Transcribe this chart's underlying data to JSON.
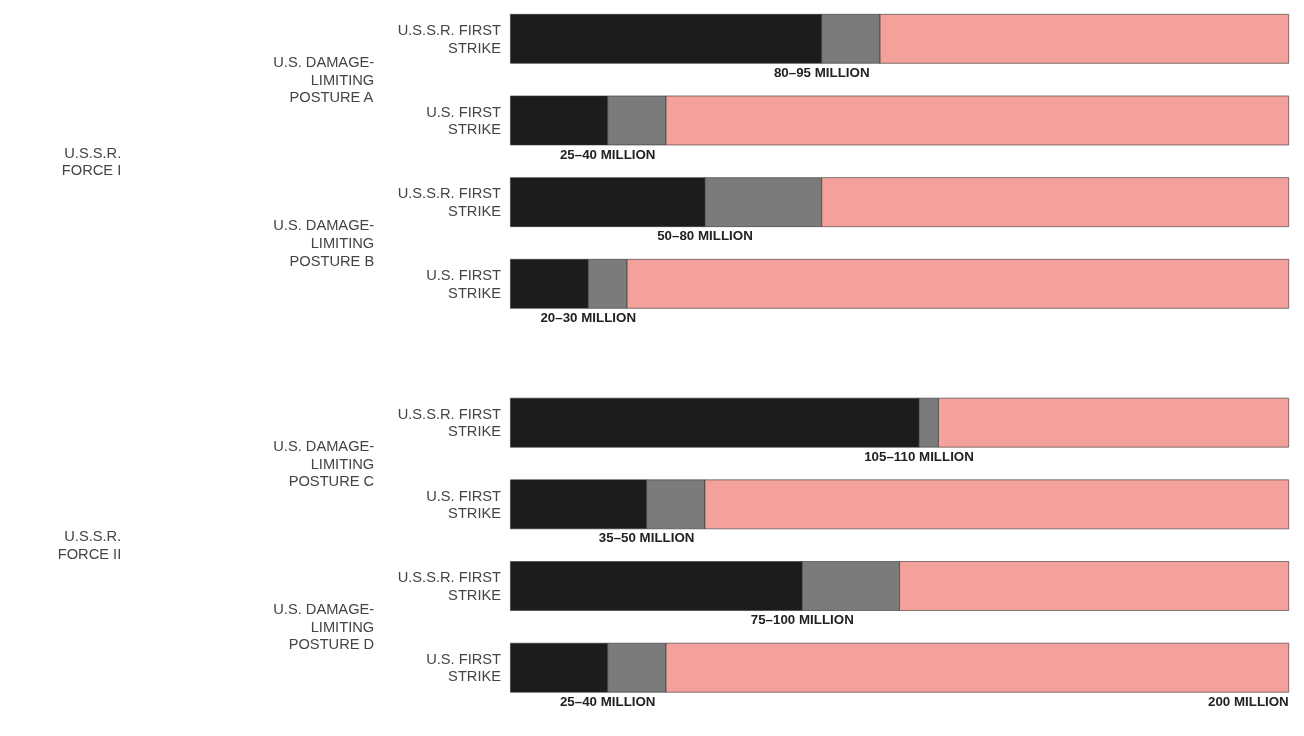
{
  "chart_data": {
    "type": "bar",
    "orientation": "horizontal",
    "stacked": true,
    "categories": [
      "U.S.S.R. FIRST\nSTRIKE",
      "U.S. FIRST\nSTRIKE",
      "U.S.S.R. FIRST\nSTRIKE",
      "U.S. FIRST\nSTRIKE",
      "U.S.S.R. FIRST\nSTRIKE",
      "U.S. FIRST\nSTRIKE",
      "U.S.S.R. FIRST\nSTRIKE",
      "U.S. FIRST\nSTRIKE"
    ],
    "series": [
      {
        "color": "#1c1c1c",
        "values": [
          80,
          25,
          50,
          20,
          105,
          35,
          75,
          25
        ],
        "value_labels": [
          "80–95 MILLION",
          "25–40 MILLION",
          "50–80 MILLION",
          "20–30 MILLION",
          "105–110 MILLION",
          "35–50 MILLION",
          "75–100 MILLION",
          "25–40 MILLION"
        ]
      },
      {
        "color": "#7b7b7b",
        "values": [
          15,
          15,
          30,
          10,
          5,
          15,
          25,
          15
        ]
      },
      {
        "color": "#f4a19c",
        "values": [
          105,
          160,
          120,
          170,
          90,
          150,
          100,
          160
        ]
      }
    ],
    "annotations": [
      "U.S. DAMAGE-\nLIMITING\nPOSTURE A",
      "U.S. DAMAGE-\nLIMITING\nPOSTURE B",
      "U.S. DAMAGE-\nLIMITING\nPOSTURE C",
      "U.S. DAMAGE-\nLIMITING\nPOSTURE D",
      "U.S.S.R.\nFORCE I",
      "U.S.S.R.\nFORCE II",
      "200 MILLION"
    ]
  }
}
